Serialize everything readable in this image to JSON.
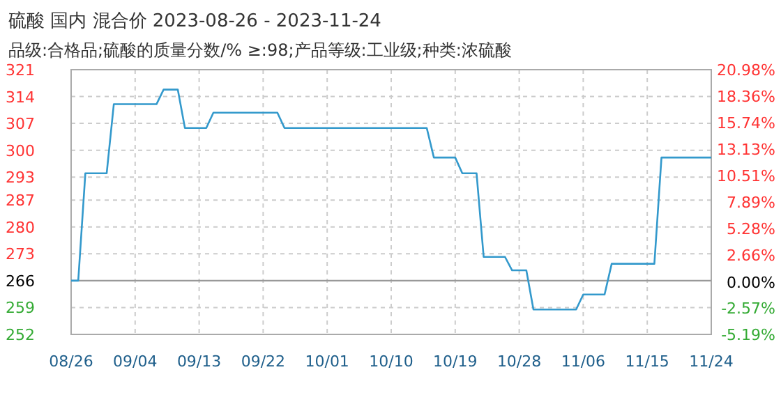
{
  "chart_data": {
    "type": "line",
    "title": "硫酸 国内 混合价 2023-08-26 - 2023-11-24",
    "subtitle": "品级:合格品;硫酸的质量分数/% ≥:98;产品等级:工业级;种类:浓硫酸",
    "series": [
      {
        "color": "#3399cc",
        "x": [
          "2023-08-26",
          "2023-08-27",
          "2023-08-28",
          "2023-08-31",
          "2023-09-01",
          "2023-09-07",
          "2023-09-08",
          "2023-09-10",
          "2023-09-11",
          "2023-09-14",
          "2023-09-15",
          "2023-09-24",
          "2023-09-25",
          "2023-10-15",
          "2023-10-16",
          "2023-10-19",
          "2023-10-20",
          "2023-10-22",
          "2023-10-23",
          "2023-10-26",
          "2023-10-27",
          "2023-10-29",
          "2023-10-30",
          "2023-11-05",
          "2023-11-06",
          "2023-11-09",
          "2023-11-10",
          "2023-11-16",
          "2023-11-17",
          "2023-11-24"
        ],
        "values": [
          266,
          266,
          294,
          294,
          312,
          312,
          315.8,
          315.8,
          305.8,
          305.8,
          309.8,
          309.8,
          305.8,
          305.8,
          298.1,
          298.1,
          294,
          294,
          272.2,
          272.2,
          268.7,
          268.7,
          258.5,
          258.5,
          262.4,
          262.4,
          270.4,
          270.4,
          298.1,
          298.1
        ]
      }
    ],
    "xlim": [
      "2023-08-26",
      "2023-11-24"
    ],
    "xticks": [
      {
        "value": "2023-08-26",
        "label": "08/26"
      },
      {
        "value": "2023-09-04",
        "label": "09/04"
      },
      {
        "value": "2023-09-13",
        "label": "09/13"
      },
      {
        "value": "2023-09-22",
        "label": "09/22"
      },
      {
        "value": "2023-10-01",
        "label": "10/01"
      },
      {
        "value": "2023-10-10",
        "label": "10/10"
      },
      {
        "value": "2023-10-19",
        "label": "10/19"
      },
      {
        "value": "2023-10-28",
        "label": "10/28"
      },
      {
        "value": "2023-11-06",
        "label": "11/06"
      },
      {
        "value": "2023-11-15",
        "label": "11/15"
      },
      {
        "value": "2023-11-24",
        "label": "11/24"
      }
    ],
    "ylim": [
      252,
      321
    ],
    "yticks": [
      252,
      259,
      266,
      273,
      280,
      287,
      293,
      300,
      307,
      314,
      321
    ],
    "y2lim": [
      -5.19,
      20.98
    ],
    "y2ticks": [
      {
        "value": -5.19,
        "label": "-5.19%"
      },
      {
        "value": -2.57,
        "label": "-2.57%"
      },
      {
        "value": 0,
        "label": "0.00%"
      },
      {
        "value": 2.66,
        "label": "2.66%"
      },
      {
        "value": 5.28,
        "label": "5.28%"
      },
      {
        "value": 7.89,
        "label": "7.89%"
      },
      {
        "value": 10.51,
        "label": "10.51%"
      },
      {
        "value": 13.13,
        "label": "13.13%"
      },
      {
        "value": 15.74,
        "label": "15.74%"
      },
      {
        "value": 18.36,
        "label": "18.36%"
      },
      {
        "value": 20.98,
        "label": "20.98%"
      }
    ],
    "ref_lines": [
      {
        "axis": "y",
        "value": 266,
        "color": "#999999"
      }
    ],
    "grid": true,
    "marker": "none",
    "line_style": "solid"
  }
}
